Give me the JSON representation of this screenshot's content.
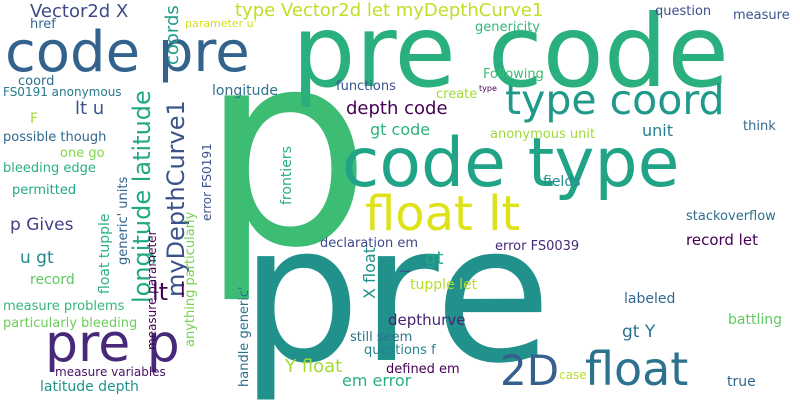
{
  "words": [
    {
      "text": "p",
      "color": "#3dbc74"
    },
    {
      "text": "pre",
      "color": "#21918c"
    },
    {
      "text": "pre code",
      "color": "#2ab07f"
    },
    {
      "text": "code pre",
      "color": "#33638d"
    },
    {
      "text": "code type",
      "color": "#20a386"
    },
    {
      "text": "type coord",
      "color": "#1f9a8a"
    },
    {
      "text": "float lt",
      "color": "#dde318"
    },
    {
      "text": "pre p",
      "color": "#482878"
    },
    {
      "text": "2D",
      "color": "#355f8d"
    },
    {
      "text": "float",
      "color": "#2c728e"
    },
    {
      "text": "Vector2d X",
      "color": "#3e4a89"
    },
    {
      "text": "type Vector2d let myDepthCurve1",
      "color": "#bddf26"
    },
    {
      "text": "question",
      "color": "#3b528b"
    },
    {
      "text": "measure",
      "color": "#39568c"
    },
    {
      "text": "genericity",
      "color": "#35b779"
    },
    {
      "text": "parameter u'",
      "color": "#d2e21b"
    },
    {
      "text": "href",
      "color": "#31688e"
    },
    {
      "text": "coords",
      "color": "#1f9e89"
    },
    {
      "text": "coord",
      "color": "#2e6e8e"
    },
    {
      "text": "FS0191 anonymous",
      "color": "#2a788e"
    },
    {
      "text": "lt u",
      "color": "#3b528b"
    },
    {
      "text": "F",
      "color": "#a0da39"
    },
    {
      "text": "possible though",
      "color": "#31688e"
    },
    {
      "text": "one go",
      "color": "#84d44b"
    },
    {
      "text": "bleeding edge",
      "color": "#2ab07f"
    },
    {
      "text": "permitted",
      "color": "#22a884"
    },
    {
      "text": "p Gives",
      "color": "#424086"
    },
    {
      "text": "u gt",
      "color": "#23888e"
    },
    {
      "text": "record",
      "color": "#5ec962"
    },
    {
      "text": "measure problems",
      "color": "#35b779"
    },
    {
      "text": "particularly bleeding",
      "color": "#6ccd5a"
    },
    {
      "text": "measure variables",
      "color": "#471365"
    },
    {
      "text": "latitude depth",
      "color": "#1f948c"
    },
    {
      "text": "functions",
      "color": "#3b528b"
    },
    {
      "text": "create",
      "color": "#a0da39"
    },
    {
      "text": "Following",
      "color": "#3dbc74"
    },
    {
      "text": "type",
      "color": "#440154"
    },
    {
      "text": "longitude",
      "color": "#2c728e"
    },
    {
      "text": "depth code",
      "color": "#440154"
    },
    {
      "text": "gt code",
      "color": "#2db27d"
    },
    {
      "text": "anonymous unit",
      "color": "#9fda3a"
    },
    {
      "text": "unit",
      "color": "#26828e"
    },
    {
      "text": "think",
      "color": "#31688e"
    },
    {
      "text": "fields",
      "color": "#238a8d"
    },
    {
      "text": "stackoverflow",
      "color": "#2d708e"
    },
    {
      "text": "record let",
      "color": "#440154"
    },
    {
      "text": "declaration em",
      "color": "#3e4989"
    },
    {
      "text": "error FS0039",
      "color": "#482878"
    },
    {
      "text": "_",
      "color": "#3b528b"
    },
    {
      "text": "gt",
      "color": "#22a884"
    },
    {
      "text": "tupple let",
      "color": "#b5de2b"
    },
    {
      "text": "labeled",
      "color": "#31688e"
    },
    {
      "text": "depthurve",
      "color": "#482475"
    },
    {
      "text": "gt Y",
      "color": "#2c728e"
    },
    {
      "text": "battling",
      "color": "#5ec962"
    },
    {
      "text": "still seem",
      "color": "#2c728e"
    },
    {
      "text": "questions f",
      "color": "#26828e"
    },
    {
      "text": "Y float",
      "color": "#a2da37"
    },
    {
      "text": "em error",
      "color": "#29af7f"
    },
    {
      "text": "defined em",
      "color": "#440154"
    },
    {
      "text": "case",
      "color": "#b5de2b"
    },
    {
      "text": "true",
      "color": "#31688e"
    },
    {
      "text": "longitude latitude",
      "color": "#22a884"
    },
    {
      "text": "myDepthCurve1",
      "color": "#3b528b"
    },
    {
      "text": "float tupple",
      "color": "#2db27d"
    },
    {
      "text": "generic' units",
      "color": "#33638d"
    },
    {
      "text": "measure parameter",
      "color": "#440154"
    },
    {
      "text": "anything particularly",
      "color": "#7ad151"
    },
    {
      "text": "error FS0191",
      "color": "#3b528b"
    },
    {
      "text": "frontiers",
      "color": "#29af7f"
    },
    {
      "text": "lt",
      "color": "#440154"
    },
    {
      "text": "handle generic'",
      "color": "#2c728e"
    },
    {
      "text": "X float",
      "color": "#21918c"
    },
    {
      "text": "l",
      "color": "#440154"
    }
  ]
}
